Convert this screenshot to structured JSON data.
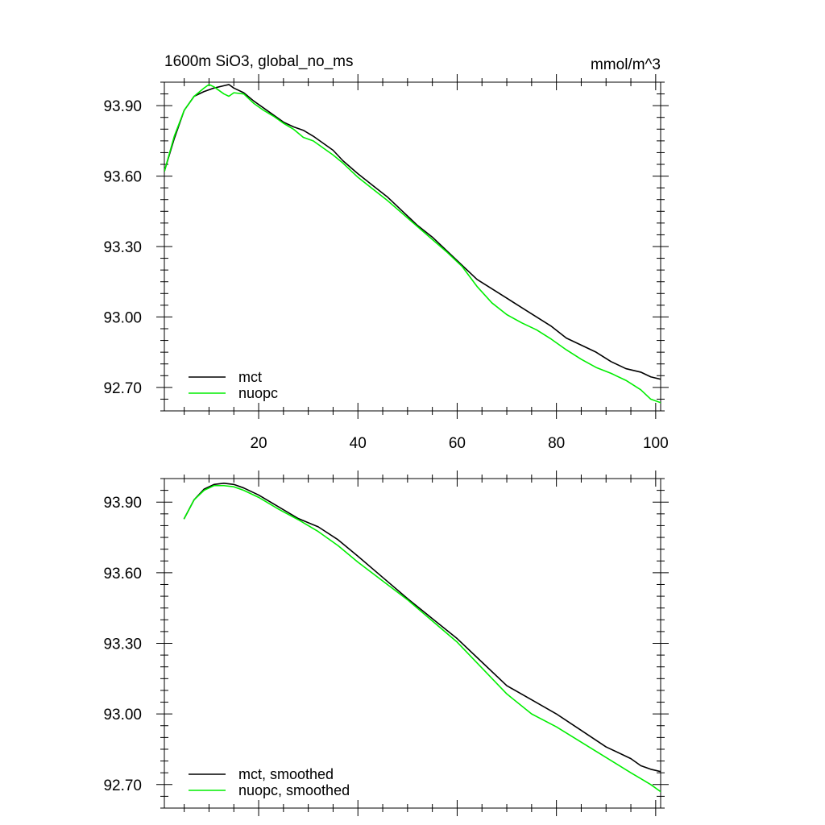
{
  "chart_data": [
    {
      "type": "line",
      "title": "1600m SiO3, global_no_ms",
      "units": "mmol/m^3",
      "xlim": [
        1,
        101
      ],
      "ylim": [
        92.6,
        94.0
      ],
      "x_ticks": [
        20,
        40,
        60,
        80,
        100
      ],
      "x_tick_labels": [
        "20",
        "40",
        "60",
        "80",
        "100"
      ],
      "y_ticks": [
        92.7,
        93.0,
        93.3,
        93.6,
        93.9
      ],
      "y_tick_labels": [
        "92.70",
        "93.00",
        "93.30",
        "93.60",
        "93.90"
      ],
      "legend_position": "bottom-left",
      "series": [
        {
          "name": "mct",
          "color": "#000000",
          "points": [
            [
              1,
              93.62
            ],
            [
              3,
              93.76
            ],
            [
              5,
              93.88
            ],
            [
              7,
              93.94
            ],
            [
              9,
              93.96
            ],
            [
              11,
              93.975
            ],
            [
              13,
              93.985
            ],
            [
              14,
              93.99
            ],
            [
              15,
              93.975
            ],
            [
              17,
              93.955
            ],
            [
              19,
              93.92
            ],
            [
              21,
              93.89
            ],
            [
              23,
              93.86
            ],
            [
              25,
              93.83
            ],
            [
              27,
              93.81
            ],
            [
              29,
              93.795
            ],
            [
              31,
              93.77
            ],
            [
              33,
              93.74
            ],
            [
              35,
              93.71
            ],
            [
              37,
              93.665
            ],
            [
              40,
              93.61
            ],
            [
              43,
              93.56
            ],
            [
              46,
              93.51
            ],
            [
              49,
              93.45
            ],
            [
              52,
              93.39
            ],
            [
              55,
              93.34
            ],
            [
              58,
              93.28
            ],
            [
              61,
              93.22
            ],
            [
              64,
              93.16
            ],
            [
              67,
              93.12
            ],
            [
              70,
              93.08
            ],
            [
              73,
              93.04
            ],
            [
              76,
              93.0
            ],
            [
              79,
              92.96
            ],
            [
              82,
              92.91
            ],
            [
              85,
              92.88
            ],
            [
              88,
              92.85
            ],
            [
              91,
              92.81
            ],
            [
              94,
              92.78
            ],
            [
              97,
              92.765
            ],
            [
              99,
              92.745
            ],
            [
              101,
              92.735
            ]
          ]
        },
        {
          "name": "nuopc",
          "color": "#00ee00",
          "points": [
            [
              1,
              93.62
            ],
            [
              3,
              93.77
            ],
            [
              5,
              93.88
            ],
            [
              7,
              93.94
            ],
            [
              9,
              93.975
            ],
            [
              10,
              93.99
            ],
            [
              11,
              93.98
            ],
            [
              13,
              93.95
            ],
            [
              14,
              93.94
            ],
            [
              15,
              93.955
            ],
            [
              17,
              93.95
            ],
            [
              19,
              93.91
            ],
            [
              21,
              93.88
            ],
            [
              23,
              93.855
            ],
            [
              25,
              93.825
            ],
            [
              27,
              93.8
            ],
            [
              29,
              93.765
            ],
            [
              31,
              93.75
            ],
            [
              33,
              93.72
            ],
            [
              35,
              93.69
            ],
            [
              37,
              93.655
            ],
            [
              40,
              93.595
            ],
            [
              43,
              93.545
            ],
            [
              46,
              93.495
            ],
            [
              49,
              93.44
            ],
            [
              52,
              93.385
            ],
            [
              55,
              93.33
            ],
            [
              58,
              93.275
            ],
            [
              61,
              93.215
            ],
            [
              64,
              93.13
            ],
            [
              67,
              93.06
            ],
            [
              70,
              93.01
            ],
            [
              73,
              92.975
            ],
            [
              76,
              92.945
            ],
            [
              79,
              92.905
            ],
            [
              82,
              92.86
            ],
            [
              85,
              92.82
            ],
            [
              88,
              92.785
            ],
            [
              91,
              92.76
            ],
            [
              94,
              92.73
            ],
            [
              97,
              92.69
            ],
            [
              99,
              92.65
            ],
            [
              101,
              92.635
            ]
          ]
        }
      ]
    },
    {
      "type": "line",
      "xlim": [
        1,
        101
      ],
      "ylim": [
        92.6,
        94.0
      ],
      "x_ticks": [
        20,
        40,
        60,
        80,
        100
      ],
      "y_ticks": [
        92.7,
        93.0,
        93.3,
        93.6,
        93.9
      ],
      "y_tick_labels": [
        "92.70",
        "93.00",
        "93.30",
        "93.60",
        "93.90"
      ],
      "legend_position": "bottom-left",
      "series": [
        {
          "name": "mct, smoothed",
          "color": "#000000",
          "points": [
            [
              5,
              93.83
            ],
            [
              7,
              93.91
            ],
            [
              9,
              93.955
            ],
            [
              11,
              93.975
            ],
            [
              13,
              93.98
            ],
            [
              15,
              93.975
            ],
            [
              17,
              93.96
            ],
            [
              20,
              93.93
            ],
            [
              24,
              93.88
            ],
            [
              28,
              93.83
            ],
            [
              32,
              93.795
            ],
            [
              36,
              93.74
            ],
            [
              40,
              93.67
            ],
            [
              45,
              93.58
            ],
            [
              50,
              93.49
            ],
            [
              55,
              93.405
            ],
            [
              60,
              93.32
            ],
            [
              65,
              93.22
            ],
            [
              70,
              93.12
            ],
            [
              75,
              93.06
            ],
            [
              80,
              93.0
            ],
            [
              85,
              92.93
            ],
            [
              90,
              92.86
            ],
            [
              95,
              92.81
            ],
            [
              97,
              92.78
            ],
            [
              99,
              92.765
            ],
            [
              101,
              92.755
            ]
          ]
        },
        {
          "name": "nuopc, smoothed",
          "color": "#00ee00",
          "points": [
            [
              5,
              93.83
            ],
            [
              7,
              93.91
            ],
            [
              9,
              93.95
            ],
            [
              11,
              93.97
            ],
            [
              13,
              93.97
            ],
            [
              15,
              93.965
            ],
            [
              17,
              93.95
            ],
            [
              20,
              93.92
            ],
            [
              24,
              93.87
            ],
            [
              28,
              93.825
            ],
            [
              32,
              93.775
            ],
            [
              36,
              93.715
            ],
            [
              40,
              93.645
            ],
            [
              45,
              93.565
            ],
            [
              50,
              93.485
            ],
            [
              55,
              93.395
            ],
            [
              60,
              93.305
            ],
            [
              65,
              93.195
            ],
            [
              70,
              93.085
            ],
            [
              75,
              93.0
            ],
            [
              80,
              92.945
            ],
            [
              85,
              92.88
            ],
            [
              90,
              92.815
            ],
            [
              95,
              92.75
            ],
            [
              97,
              92.725
            ],
            [
              99,
              92.7
            ],
            [
              101,
              92.67
            ]
          ]
        }
      ]
    }
  ]
}
